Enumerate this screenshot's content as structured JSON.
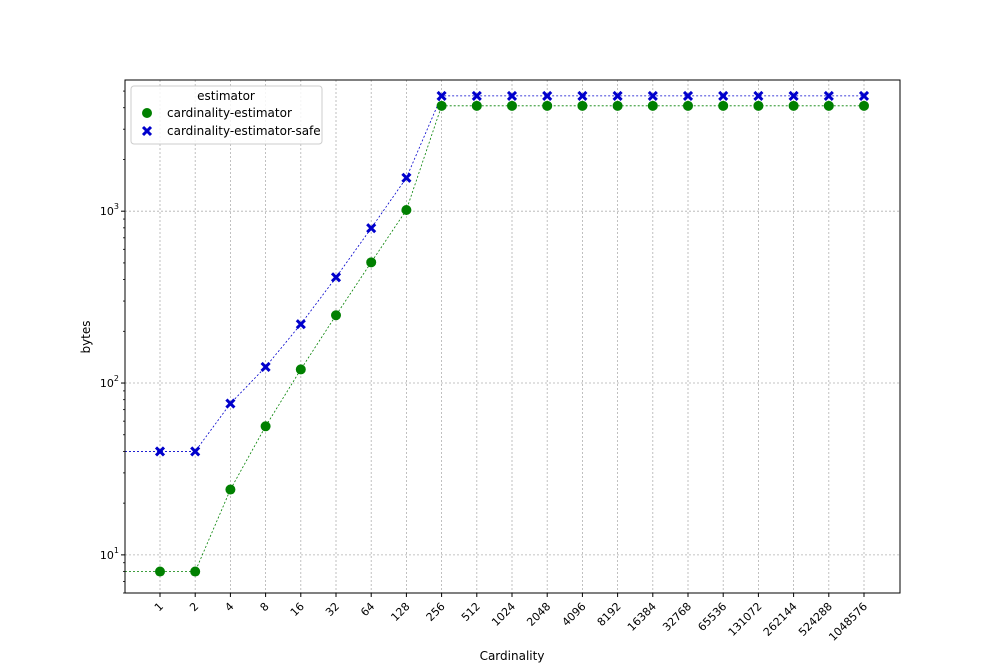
{
  "chart_data": {
    "type": "scatter",
    "xlabel": "Cardinality",
    "ylabel": "bytes",
    "yscale": "log",
    "ylim": [
      6,
      5800
    ],
    "grid": true,
    "legend": {
      "title": "estimator",
      "placement": "top-left"
    },
    "categories": [
      "1",
      "2",
      "4",
      "8",
      "16",
      "32",
      "64",
      "128",
      "256",
      "512",
      "1024",
      "2048",
      "4096",
      "8192",
      "16384",
      "32768",
      "65536",
      "131072",
      "262144",
      "524288",
      "1048576"
    ],
    "y_ticks": [
      {
        "value": 10,
        "base": "10",
        "exp": "1"
      },
      {
        "value": 100,
        "base": "10",
        "exp": "2"
      },
      {
        "value": 1000,
        "base": "10",
        "exp": "3"
      }
    ],
    "series": [
      {
        "name": "cardinality-estimator",
        "color": "#008000",
        "marker": "circle",
        "values": [
          8,
          8,
          24,
          56,
          120,
          248,
          504,
          1016,
          4104,
          4104,
          4104,
          4104,
          4104,
          4104,
          4104,
          4104,
          4104,
          4104,
          4104,
          4104,
          4104
        ]
      },
      {
        "name": "cardinality-estimator-safe",
        "color": "#0000cc",
        "marker": "x",
        "values": [
          40,
          40,
          76,
          124,
          220,
          412,
          796,
          1564,
          4688,
          4688,
          4688,
          4688,
          4688,
          4688,
          4688,
          4688,
          4688,
          4688,
          4688,
          4688,
          4688
        ]
      }
    ]
  }
}
